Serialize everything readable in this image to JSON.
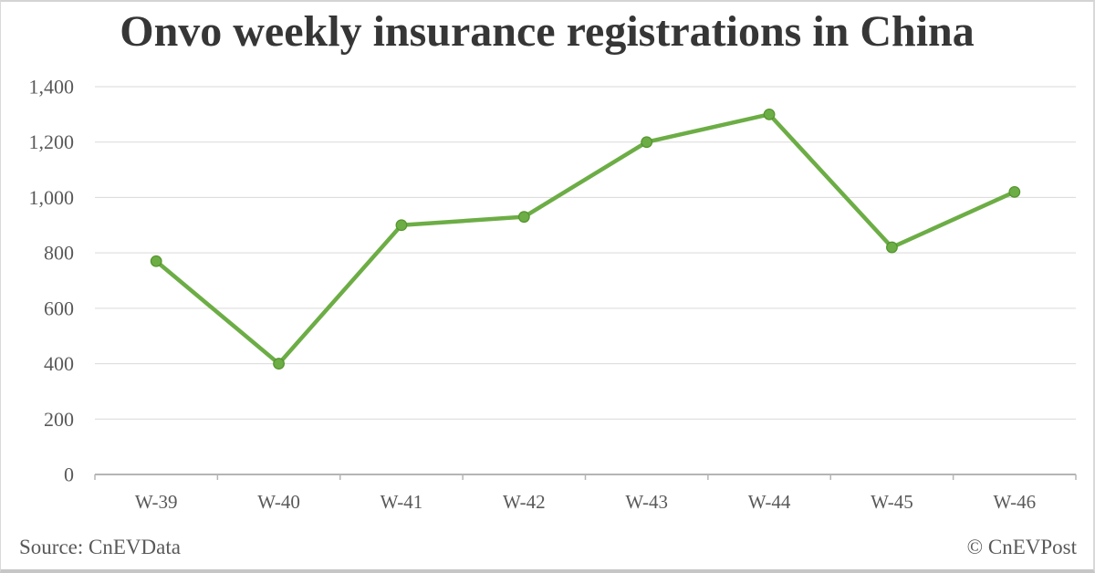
{
  "header": {
    "title": "Onvo weekly insurance registrations in China"
  },
  "footer": {
    "source": "Source: CnEVData",
    "copyright": "© CnEVPost"
  },
  "chart_data": {
    "type": "line",
    "title": "Onvo weekly insurance registrations in China",
    "categories": [
      "W-39",
      "W-40",
      "W-41",
      "W-42",
      "W-43",
      "W-44",
      "W-45",
      "W-46"
    ],
    "series": [
      {
        "name": "Onvo weekly insurance registrations",
        "values": [
          770,
          400,
          900,
          930,
          1200,
          1300,
          820,
          1020
        ]
      }
    ],
    "xlabel": "",
    "ylabel": "",
    "ylim": [
      0,
      1400
    ],
    "ytick_step": 200,
    "ytick_labels": [
      "0",
      "200",
      "400",
      "600",
      "800",
      "1,000",
      "1,200",
      "1,400"
    ],
    "grid": true,
    "legend": false,
    "colors": {
      "line": "#6cad45",
      "marker": "#6cad45",
      "marker_stroke": "#55942c",
      "grid": "#d9d9d9",
      "axis": "#b5b5b5",
      "tick_label": "#595959",
      "title_text": "#363636",
      "footer_text": "#595959"
    }
  }
}
